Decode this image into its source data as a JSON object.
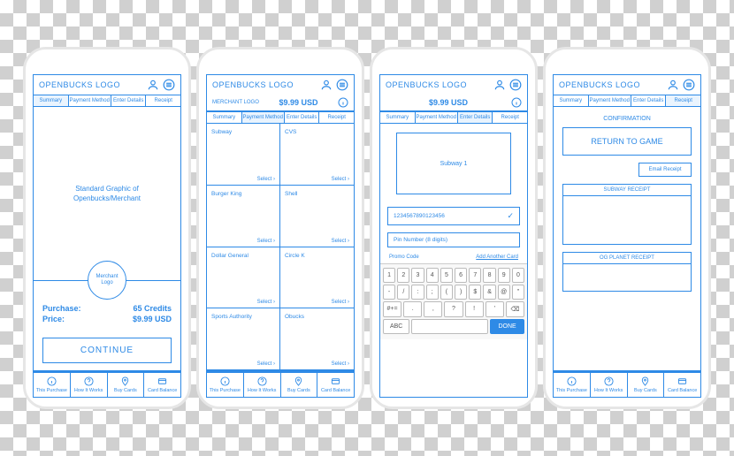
{
  "brand": {
    "logo_text": "OPENBUCKS LOGO"
  },
  "colors": {
    "primary": "#2e8ae6",
    "bg": "#ffffff"
  },
  "tabs": [
    "Summary",
    "Payment Method",
    "Enter Details",
    "Receipt"
  ],
  "footer": [
    {
      "label": "This Purchase",
      "icon": "info"
    },
    {
      "label": "How It Works",
      "icon": "help"
    },
    {
      "label": "Buy Cards",
      "icon": "pin"
    },
    {
      "label": "Card Balance",
      "icon": "card"
    }
  ],
  "screen1": {
    "graphic_text": "Standard Graphic of\nOpenbucks/Merchant",
    "merchant_circle": "Merchant\nLogo",
    "purchase_label": "Purchase:",
    "purchase_value": "65 Credits",
    "price_label": "Price:",
    "price_value": "$9.99 USD",
    "continue": "CONTINUE"
  },
  "screen2": {
    "merchant_label": "MERCHANT LOGO",
    "amount": "$9.99 USD",
    "select": "Select",
    "merchants": [
      "Subway",
      "CVS",
      "Burger King",
      "Shell",
      "Dollar General",
      "Circle K",
      "Sports Authority",
      "Obucks"
    ]
  },
  "screen3": {
    "amount": "$9.99 USD",
    "card_label": "Subway 1",
    "card_number": "1234567890123456",
    "pin_placeholder": "Pin Number (8 digits)",
    "promo": "Promo Code",
    "add_another": "Add Another Card",
    "keyboard": {
      "row1": [
        "1",
        "2",
        "3",
        "4",
        "5",
        "6",
        "7",
        "8",
        "9",
        "0"
      ],
      "row2": [
        "-",
        "/",
        ":",
        ";",
        "(",
        ")",
        "$",
        "&",
        "@",
        "\""
      ],
      "row3": [
        "#+=",
        ".",
        ",",
        "?",
        "!",
        "'",
        "⌫"
      ],
      "row4": [
        "ABC",
        "space",
        "DONE"
      ]
    }
  },
  "screen4": {
    "confirmation": "CONFIRMATION",
    "return": "RETURN TO GAME",
    "email": "Email Receipt",
    "receipt1": "SUBWAY RECEIPT",
    "receipt2": "OG PLANET RECEIPT"
  }
}
